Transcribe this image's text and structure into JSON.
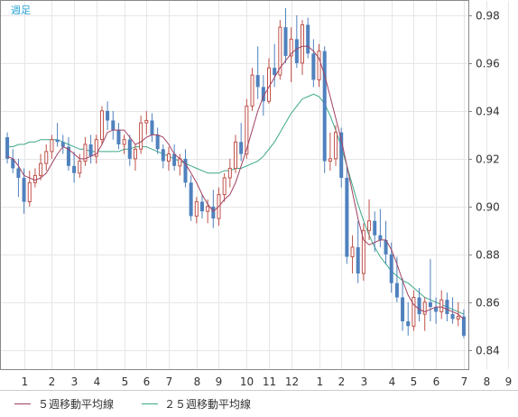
{
  "period_label": "週足",
  "colors": {
    "up_candle": "#c0524a",
    "down_candle": "#4f81bd",
    "ma5": "#a04060",
    "ma25": "#3aa88a",
    "grid": "#e6e6e6",
    "frame": "#888888",
    "period_text": "#29a3d6"
  },
  "chart_data": {
    "type": "candlestick",
    "period": "weekly",
    "ylim": [
      0.832,
      0.986
    ],
    "yticks": [
      "0.98",
      "0.96",
      "0.94",
      "0.92",
      "0.90",
      "0.88",
      "0.86",
      "0.84"
    ],
    "ytick_values": [
      0.98,
      0.96,
      0.94,
      0.92,
      0.9,
      0.88,
      0.86,
      0.84
    ],
    "xticks": [
      {
        "label": "1",
        "i": 3
      },
      {
        "label": "2",
        "i": 8
      },
      {
        "label": "3",
        "i": 12
      },
      {
        "label": "4",
        "i": 16
      },
      {
        "label": "5",
        "i": 21
      },
      {
        "label": "6",
        "i": 25
      },
      {
        "label": "7",
        "i": 29
      },
      {
        "label": "8",
        "i": 34
      },
      {
        "label": "9",
        "i": 38
      },
      {
        "label": "10",
        "i": 43
      },
      {
        "label": "11",
        "i": 47
      },
      {
        "label": "12",
        "i": 51
      },
      {
        "label": "1",
        "i": 56
      },
      {
        "label": "2",
        "i": 60
      },
      {
        "label": "3",
        "i": 64
      },
      {
        "label": "4",
        "i": 69
      },
      {
        "label": "5",
        "i": 73
      },
      {
        "label": "6",
        "i": 77
      },
      {
        "label": "7",
        "i": 82
      },
      {
        "label": "8",
        "i": 86
      },
      {
        "label": "9",
        "i": 90
      }
    ],
    "legend": [
      "５週移動平均線",
      "２５週移動平均線"
    ],
    "ohlc": [
      [
        0.929,
        0.931,
        0.918,
        0.92
      ],
      [
        0.92,
        0.924,
        0.914,
        0.916
      ],
      [
        0.916,
        0.92,
        0.904,
        0.912
      ],
      [
        0.912,
        0.916,
        0.897,
        0.902
      ],
      [
        0.902,
        0.915,
        0.9,
        0.91
      ],
      [
        0.91,
        0.916,
        0.908,
        0.913
      ],
      [
        0.913,
        0.922,
        0.911,
        0.918
      ],
      [
        0.918,
        0.926,
        0.915,
        0.923
      ],
      [
        0.923,
        0.93,
        0.92,
        0.928
      ],
      [
        0.928,
        0.935,
        0.925,
        0.927
      ],
      [
        0.927,
        0.93,
        0.922,
        0.925
      ],
      [
        0.925,
        0.929,
        0.915,
        0.917
      ],
      [
        0.917,
        0.923,
        0.91,
        0.914
      ],
      [
        0.914,
        0.922,
        0.912,
        0.919
      ],
      [
        0.919,
        0.929,
        0.917,
        0.926
      ],
      [
        0.926,
        0.93,
        0.918,
        0.921
      ],
      [
        0.921,
        0.93,
        0.918,
        0.928
      ],
      [
        0.928,
        0.942,
        0.926,
        0.94
      ],
      [
        0.94,
        0.944,
        0.932,
        0.936
      ],
      [
        0.936,
        0.94,
        0.928,
        0.932
      ],
      [
        0.932,
        0.935,
        0.924,
        0.926
      ],
      [
        0.926,
        0.93,
        0.922,
        0.928
      ],
      [
        0.928,
        0.93,
        0.917,
        0.92
      ],
      [
        0.92,
        0.926,
        0.915,
        0.924
      ],
      [
        0.924,
        0.938,
        0.922,
        0.935
      ],
      [
        0.935,
        0.94,
        0.93,
        0.936
      ],
      [
        0.936,
        0.939,
        0.927,
        0.93
      ],
      [
        0.93,
        0.933,
        0.922,
        0.924
      ],
      [
        0.924,
        0.926,
        0.916,
        0.919
      ],
      [
        0.919,
        0.925,
        0.915,
        0.922
      ],
      [
        0.922,
        0.926,
        0.915,
        0.917
      ],
      [
        0.917,
        0.922,
        0.913,
        0.92
      ],
      [
        0.92,
        0.924,
        0.908,
        0.91
      ],
      [
        0.91,
        0.913,
        0.894,
        0.896
      ],
      [
        0.896,
        0.904,
        0.893,
        0.902
      ],
      [
        0.902,
        0.905,
        0.895,
        0.898
      ],
      [
        0.898,
        0.903,
        0.893,
        0.9
      ],
      [
        0.9,
        0.907,
        0.891,
        0.895
      ],
      [
        0.895,
        0.908,
        0.892,
        0.905
      ],
      [
        0.905,
        0.914,
        0.902,
        0.912
      ],
      [
        0.912,
        0.92,
        0.908,
        0.916
      ],
      [
        0.916,
        0.93,
        0.914,
        0.927
      ],
      [
        0.927,
        0.935,
        0.919,
        0.922
      ],
      [
        0.922,
        0.945,
        0.92,
        0.942
      ],
      [
        0.942,
        0.958,
        0.94,
        0.955
      ],
      [
        0.955,
        0.967,
        0.945,
        0.95
      ],
      [
        0.95,
        0.955,
        0.938,
        0.944
      ],
      [
        0.944,
        0.962,
        0.943,
        0.958
      ],
      [
        0.958,
        0.968,
        0.95,
        0.955
      ],
      [
        0.955,
        0.978,
        0.953,
        0.975
      ],
      [
        0.975,
        0.983,
        0.96,
        0.963
      ],
      [
        0.963,
        0.975,
        0.952,
        0.97
      ],
      [
        0.97,
        0.98,
        0.958,
        0.96
      ],
      [
        0.96,
        0.978,
        0.955,
        0.976
      ],
      [
        0.976,
        0.979,
        0.962,
        0.964
      ],
      [
        0.964,
        0.97,
        0.95,
        0.953
      ],
      [
        0.953,
        0.968,
        0.95,
        0.965
      ],
      [
        0.965,
        0.967,
        0.914,
        0.919
      ],
      [
        0.919,
        0.931,
        0.915,
        0.92
      ],
      [
        0.92,
        0.934,
        0.917,
        0.931
      ],
      [
        0.931,
        0.933,
        0.908,
        0.912
      ],
      [
        0.912,
        0.917,
        0.876,
        0.879
      ],
      [
        0.879,
        0.888,
        0.872,
        0.883
      ],
      [
        0.883,
        0.894,
        0.868,
        0.872
      ],
      [
        0.872,
        0.893,
        0.869,
        0.89
      ],
      [
        0.89,
        0.903,
        0.886,
        0.894
      ],
      [
        0.894,
        0.898,
        0.881,
        0.888
      ],
      [
        0.888,
        0.899,
        0.883,
        0.886
      ],
      [
        0.886,
        0.894,
        0.876,
        0.88
      ],
      [
        0.88,
        0.885,
        0.864,
        0.868
      ],
      [
        0.868,
        0.879,
        0.86,
        0.862
      ],
      [
        0.862,
        0.87,
        0.848,
        0.852
      ],
      [
        0.852,
        0.86,
        0.846,
        0.85
      ],
      [
        0.85,
        0.865,
        0.848,
        0.862
      ],
      [
        0.862,
        0.866,
        0.852,
        0.855
      ],
      [
        0.855,
        0.862,
        0.848,
        0.86
      ],
      [
        0.86,
        0.878,
        0.852,
        0.858
      ],
      [
        0.858,
        0.862,
        0.851,
        0.856
      ],
      [
        0.856,
        0.865,
        0.853,
        0.861
      ],
      [
        0.861,
        0.864,
        0.852,
        0.855
      ],
      [
        0.855,
        0.862,
        0.851,
        0.853
      ],
      [
        0.853,
        0.86,
        0.85,
        0.854
      ],
      [
        0.854,
        0.857,
        0.845,
        0.846
      ]
    ],
    "ma5": [
      0.921,
      0.92,
      0.917,
      0.913,
      0.912,
      0.911,
      0.912,
      0.914,
      0.918,
      0.922,
      0.925,
      0.924,
      0.922,
      0.92,
      0.92,
      0.921,
      0.922,
      0.926,
      0.931,
      0.932,
      0.932,
      0.932,
      0.929,
      0.926,
      0.927,
      0.929,
      0.93,
      0.93,
      0.929,
      0.926,
      0.922,
      0.92,
      0.918,
      0.914,
      0.91,
      0.905,
      0.901,
      0.898,
      0.9,
      0.903,
      0.905,
      0.91,
      0.917,
      0.924,
      0.932,
      0.94,
      0.946,
      0.95,
      0.954,
      0.958,
      0.961,
      0.964,
      0.966,
      0.967,
      0.967,
      0.965,
      0.962,
      0.955,
      0.946,
      0.937,
      0.928,
      0.917,
      0.906,
      0.895,
      0.886,
      0.884,
      0.885,
      0.886,
      0.886,
      0.882,
      0.876,
      0.869,
      0.863,
      0.859,
      0.857,
      0.856,
      0.857,
      0.858,
      0.858,
      0.857,
      0.856,
      0.855,
      0.853
    ],
    "ma25": [
      0.925,
      0.925,
      0.926,
      0.926,
      0.927,
      0.927,
      0.928,
      0.928,
      0.928,
      0.928,
      0.927,
      0.926,
      0.925,
      0.924,
      0.924,
      0.923,
      0.923,
      0.923,
      0.923,
      0.923,
      0.923,
      0.924,
      0.924,
      0.925,
      0.925,
      0.925,
      0.924,
      0.923,
      0.922,
      0.921,
      0.92,
      0.919,
      0.918,
      0.917,
      0.916,
      0.915,
      0.914,
      0.914,
      0.914,
      0.915,
      0.915,
      0.916,
      0.916,
      0.917,
      0.918,
      0.919,
      0.921,
      0.924,
      0.927,
      0.931,
      0.935,
      0.939,
      0.942,
      0.945,
      0.946,
      0.947,
      0.946,
      0.943,
      0.938,
      0.932,
      0.925,
      0.917,
      0.909,
      0.901,
      0.894,
      0.888,
      0.883,
      0.879,
      0.876,
      0.873,
      0.871,
      0.869,
      0.868,
      0.866,
      0.864,
      0.862,
      0.861,
      0.86,
      0.859,
      0.858,
      0.857,
      0.856,
      0.855
    ]
  }
}
